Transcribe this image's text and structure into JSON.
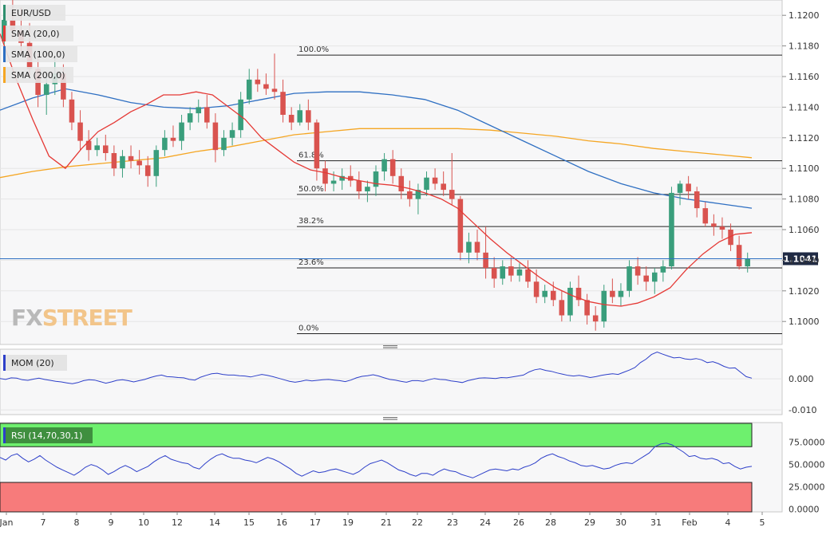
{
  "chart_data": {
    "type": "candlestick",
    "symbol": "EUR/USD",
    "brand": {
      "part1": "FX",
      "part2": "STREET",
      "color1": "#b9b9b9",
      "color2": "#f2c58a"
    },
    "x_labels": [
      "Jan",
      "7",
      "8",
      "9",
      "10",
      "12",
      "14",
      "15",
      "16",
      "17",
      "19",
      "21",
      "22",
      "23",
      "24",
      "26",
      "28",
      "29",
      "30",
      "31",
      "Feb",
      "4",
      "5"
    ],
    "price_axis": {
      "ticks": [
        "1.1200",
        "1.1180",
        "1.1160",
        "1.1140",
        "1.1120",
        "1.1100",
        "1.1080",
        "1.1060",
        "1.1040",
        "1.1020",
        "1.1000"
      ],
      "range": [
        1.0985,
        1.121
      ]
    },
    "last_price": "1.1041",
    "fibonacci": [
      {
        "label": "100.0%",
        "price": 1.1174
      },
      {
        "label": "61.8%",
        "price": 1.1105
      },
      {
        "label": "50.0%",
        "price": 1.1083
      },
      {
        "label": "38.2%",
        "price": 1.1062
      },
      {
        "label": "23.6%",
        "price": 1.1035
      },
      {
        "label": "0.0%",
        "price": 1.0992
      }
    ],
    "legend": [
      {
        "name": "EUR/USD",
        "color": "#2f8f6f"
      },
      {
        "name": "SMA (20,0)",
        "color": "#e53935"
      },
      {
        "name": "SMA (100,0)",
        "color": "#2e6fc2"
      },
      {
        "name": "SMA (200,0)",
        "color": "#f5a623"
      }
    ],
    "colors": {
      "up": "#3a9e7c",
      "down": "#d9534f",
      "sma20": "#e53935",
      "sma100": "#2e6fc2",
      "sma200": "#f5a623",
      "current_line": "#2e6fc2",
      "grid": "#e6e6e6"
    },
    "candles": [
      [
        1.1183,
        1.1202,
        1.117,
        1.1197
      ],
      [
        1.1197,
        1.121,
        1.1185,
        1.119
      ],
      [
        1.119,
        1.1205,
        1.1175,
        1.1182
      ],
      [
        1.1182,
        1.1195,
        1.116,
        1.1165
      ],
      [
        1.1165,
        1.1175,
        1.114,
        1.1148
      ],
      [
        1.1148,
        1.116,
        1.1135,
        1.1155
      ],
      [
        1.1155,
        1.1172,
        1.1148,
        1.1162
      ],
      [
        1.1162,
        1.1168,
        1.114,
        1.1145
      ],
      [
        1.1145,
        1.115,
        1.1125,
        1.113
      ],
      [
        1.113,
        1.1138,
        1.1112,
        1.1118
      ],
      [
        1.1118,
        1.1125,
        1.1105,
        1.1112
      ],
      [
        1.1112,
        1.112,
        1.1108,
        1.1115
      ],
      [
        1.1115,
        1.1122,
        1.1105,
        1.111
      ],
      [
        1.111,
        1.1115,
        1.1095,
        1.11
      ],
      [
        1.11,
        1.1112,
        1.1094,
        1.1108
      ],
      [
        1.1108,
        1.1115,
        1.11,
        1.1105
      ],
      [
        1.1105,
        1.1112,
        1.1096,
        1.1102
      ],
      [
        1.1102,
        1.1108,
        1.1088,
        1.1095
      ],
      [
        1.1095,
        1.1115,
        1.1088,
        1.1112
      ],
      [
        1.1112,
        1.1125,
        1.1108,
        1.112
      ],
      [
        1.112,
        1.1128,
        1.1114,
        1.1118
      ],
      [
        1.1118,
        1.1135,
        1.1112,
        1.113
      ],
      [
        1.113,
        1.114,
        1.1125,
        1.1136
      ],
      [
        1.1136,
        1.1145,
        1.113,
        1.114
      ],
      [
        1.114,
        1.1148,
        1.1126,
        1.113
      ],
      [
        1.113,
        1.1136,
        1.1104,
        1.1112
      ],
      [
        1.1112,
        1.1125,
        1.1108,
        1.112
      ],
      [
        1.112,
        1.113,
        1.1115,
        1.1125
      ],
      [
        1.1125,
        1.115,
        1.112,
        1.1145
      ],
      [
        1.1145,
        1.1165,
        1.1142,
        1.1158
      ],
      [
        1.1158,
        1.1165,
        1.115,
        1.1155
      ],
      [
        1.1155,
        1.1162,
        1.1148,
        1.1152
      ],
      [
        1.1152,
        1.1175,
        1.1145,
        1.115
      ],
      [
        1.115,
        1.1158,
        1.113,
        1.1135
      ],
      [
        1.1135,
        1.114,
        1.1125,
        1.113
      ],
      [
        1.113,
        1.1142,
        1.1128,
        1.1138
      ],
      [
        1.1138,
        1.1145,
        1.1125,
        1.113
      ],
      [
        1.113,
        1.1132,
        1.1092,
        1.11
      ],
      [
        1.11,
        1.1105,
        1.1085,
        1.109
      ],
      [
        1.109,
        1.1098,
        1.1085,
        1.1092
      ],
      [
        1.1092,
        1.11,
        1.1086,
        1.1095
      ],
      [
        1.1095,
        1.1102,
        1.1088,
        1.1092
      ],
      [
        1.1092,
        1.1098,
        1.108,
        1.1085
      ],
      [
        1.1085,
        1.1092,
        1.1078,
        1.1088
      ],
      [
        1.1088,
        1.1102,
        1.1082,
        1.1098
      ],
      [
        1.1098,
        1.111,
        1.1092,
        1.1106
      ],
      [
        1.1106,
        1.1112,
        1.109,
        1.1095
      ],
      [
        1.1095,
        1.11,
        1.108,
        1.1085
      ],
      [
        1.1085,
        1.1092,
        1.1075,
        1.108
      ],
      [
        1.108,
        1.109,
        1.107,
        1.1086
      ],
      [
        1.1086,
        1.1098,
        1.1082,
        1.1094
      ],
      [
        1.1094,
        1.11,
        1.1086,
        1.109
      ],
      [
        1.109,
        1.1098,
        1.1082,
        1.1086
      ],
      [
        1.1086,
        1.111,
        1.1076,
        1.108
      ],
      [
        1.108,
        1.1082,
        1.104,
        1.1045
      ],
      [
        1.1045,
        1.1058,
        1.1038,
        1.1052
      ],
      [
        1.1052,
        1.106,
        1.104,
        1.1045
      ],
      [
        1.1045,
        1.1062,
        1.1028,
        1.1035
      ],
      [
        1.1035,
        1.1042,
        1.1022,
        1.1028
      ],
      [
        1.1028,
        1.104,
        1.1024,
        1.1036
      ],
      [
        1.1036,
        1.1042,
        1.1026,
        1.103
      ],
      [
        1.103,
        1.1038,
        1.1026,
        1.1034
      ],
      [
        1.1034,
        1.104,
        1.1022,
        1.1026
      ],
      [
        1.1026,
        1.1034,
        1.1012,
        1.1016
      ],
      [
        1.1016,
        1.1024,
        1.1012,
        1.102
      ],
      [
        1.102,
        1.1026,
        1.101,
        1.1014
      ],
      [
        1.1014,
        1.102,
        1.1,
        1.1004
      ],
      [
        1.1004,
        1.1026,
        1.1,
        1.1022
      ],
      [
        1.1022,
        1.103,
        1.101,
        1.1014
      ],
      [
        1.1014,
        1.1018,
        1.0998,
        1.1004
      ],
      [
        1.1004,
        1.101,
        1.0994,
        1.1
      ],
      [
        1.1,
        1.1024,
        1.0996,
        1.102
      ],
      [
        1.102,
        1.1028,
        1.1012,
        1.1016
      ],
      [
        1.1016,
        1.1025,
        1.101,
        1.102
      ],
      [
        1.102,
        1.104,
        1.1016,
        1.1036
      ],
      [
        1.1036,
        1.1042,
        1.1024,
        1.103
      ],
      [
        1.103,
        1.1036,
        1.102,
        1.1026
      ],
      [
        1.1026,
        1.1035,
        1.1018,
        1.1032
      ],
      [
        1.1032,
        1.104,
        1.1026,
        1.1036
      ],
      [
        1.1036,
        1.1088,
        1.1034,
        1.1084
      ],
      [
        1.1084,
        1.1092,
        1.1076,
        1.109
      ],
      [
        1.109,
        1.1095,
        1.108,
        1.1085
      ],
      [
        1.1085,
        1.1088,
        1.1068,
        1.1074
      ],
      [
        1.1074,
        1.1078,
        1.1062,
        1.1064
      ],
      [
        1.1064,
        1.107,
        1.1056,
        1.1062
      ],
      [
        1.1062,
        1.1068,
        1.1054,
        1.106
      ],
      [
        1.106,
        1.1064,
        1.1046,
        1.105
      ],
      [
        1.105,
        1.1056,
        1.1034,
        1.1036
      ],
      [
        1.1036,
        1.1045,
        1.1032,
        1.1041
      ]
    ],
    "sma20": [
      [
        0,
        1.1188
      ],
      [
        15,
        1.1158
      ],
      [
        30,
        1.1132
      ],
      [
        45,
        1.1108
      ],
      [
        60,
        1.11
      ],
      [
        75,
        1.1113
      ],
      [
        90,
        1.1124
      ],
      [
        105,
        1.113
      ],
      [
        120,
        1.1137
      ],
      [
        135,
        1.1142
      ],
      [
        150,
        1.1148
      ],
      [
        165,
        1.1148
      ],
      [
        180,
        1.115
      ],
      [
        195,
        1.1148
      ],
      [
        210,
        1.114
      ],
      [
        225,
        1.1132
      ],
      [
        240,
        1.112
      ],
      [
        255,
        1.1112
      ],
      [
        270,
        1.1104
      ],
      [
        285,
        1.1099
      ],
      [
        300,
        1.1097
      ],
      [
        315,
        1.1094
      ],
      [
        330,
        1.1092
      ],
      [
        345,
        1.109
      ],
      [
        360,
        1.1089
      ],
      [
        375,
        1.1087
      ],
      [
        390,
        1.1084
      ],
      [
        405,
        1.108
      ],
      [
        420,
        1.1074
      ],
      [
        435,
        1.1064
      ],
      [
        450,
        1.1054
      ],
      [
        465,
        1.1045
      ],
      [
        480,
        1.1037
      ],
      [
        495,
        1.1029
      ],
      [
        510,
        1.1022
      ],
      [
        525,
        1.1017
      ],
      [
        540,
        1.1013
      ],
      [
        555,
        1.1011
      ],
      [
        570,
        1.101
      ],
      [
        585,
        1.1012
      ],
      [
        600,
        1.1016
      ],
      [
        615,
        1.1022
      ],
      [
        630,
        1.1034
      ],
      [
        645,
        1.1044
      ],
      [
        660,
        1.1052
      ],
      [
        675,
        1.1057
      ],
      [
        690,
        1.1058
      ]
    ],
    "sma100": [
      [
        0,
        1.1138
      ],
      [
        30,
        1.1146
      ],
      [
        60,
        1.1152
      ],
      [
        90,
        1.1148
      ],
      [
        120,
        1.1143
      ],
      [
        150,
        1.114
      ],
      [
        180,
        1.1139
      ],
      [
        210,
        1.1141
      ],
      [
        240,
        1.1145
      ],
      [
        270,
        1.1149
      ],
      [
        300,
        1.115
      ],
      [
        330,
        1.115
      ],
      [
        360,
        1.1148
      ],
      [
        390,
        1.1145
      ],
      [
        420,
        1.1138
      ],
      [
        450,
        1.1128
      ],
      [
        480,
        1.1118
      ],
      [
        510,
        1.1108
      ],
      [
        540,
        1.1098
      ],
      [
        570,
        1.109
      ],
      [
        600,
        1.1084
      ],
      [
        630,
        1.108
      ],
      [
        660,
        1.1077
      ],
      [
        690,
        1.1074
      ]
    ],
    "sma200": [
      [
        0,
        1.1094
      ],
      [
        30,
        1.1098
      ],
      [
        60,
        1.1101
      ],
      [
        90,
        1.1103
      ],
      [
        120,
        1.1105
      ],
      [
        150,
        1.1107
      ],
      [
        180,
        1.1111
      ],
      [
        210,
        1.1114
      ],
      [
        240,
        1.1118
      ],
      [
        270,
        1.1122
      ],
      [
        300,
        1.1124
      ],
      [
        330,
        1.1126
      ],
      [
        360,
        1.1126
      ],
      [
        390,
        1.1126
      ],
      [
        420,
        1.1126
      ],
      [
        450,
        1.1125
      ],
      [
        480,
        1.1123
      ],
      [
        510,
        1.1121
      ],
      [
        540,
        1.1118
      ],
      [
        570,
        1.1116
      ],
      [
        600,
        1.1113
      ],
      [
        630,
        1.1111
      ],
      [
        660,
        1.1109
      ],
      [
        690,
        1.1107
      ]
    ],
    "mom": {
      "label": "MOM (20)",
      "ticks": [
        "0.000",
        "-0.010"
      ],
      "range": [
        -0.0115,
        0.0095
      ],
      "values": [
        0.0001,
        -0.0002,
        0.0003,
        0.0002,
        -0.0003,
        -0.0005,
        -0.0001,
        0.0002,
        -0.0002,
        -0.0005,
        -0.0008,
        -0.001,
        -0.0013,
        -0.0016,
        -0.0012,
        -0.0006,
        -0.0003,
        -0.0004,
        -0.0009,
        -0.0014,
        -0.001,
        -0.0005,
        -0.0003,
        -0.0006,
        -0.001,
        -0.0006,
        -0.0002,
        0.0004,
        0.0009,
        0.0012,
        0.0007,
        0.0006,
        0.0004,
        0.0003,
        -0.0002,
        -0.0004,
        0.0005,
        0.0011,
        0.0016,
        0.0018,
        0.0014,
        0.0012,
        0.0012,
        0.001,
        0.0009,
        0.0006,
        0.001,
        0.0014,
        0.0011,
        0.0007,
        0.0002,
        -0.0003,
        -0.0008,
        -0.0011,
        -0.0008,
        -0.0004,
        -0.0007,
        -0.0005,
        -0.0003,
        -0.0002,
        -0.0004,
        -0.0006,
        -0.0009,
        -0.0004,
        0.0003,
        0.0008,
        0.001,
        0.0013,
        0.0009,
        0.0003,
        -0.0002,
        -0.0004,
        -0.0008,
        -0.0011,
        -0.0006,
        -0.0006,
        -0.0008,
        -0.0003,
        0.0001,
        -0.0002,
        -0.0003,
        -0.0007,
        -0.0009,
        -0.0012,
        -0.0006,
        -0.0002,
        0.0002,
        0.0003,
        0.0002,
        0.0001,
        0.0004,
        0.0003,
        0.0006,
        0.0009,
        0.0012,
        0.0022,
        0.0029,
        0.0032,
        0.0027,
        0.0024,
        0.0019,
        0.0015,
        0.0011,
        0.0009,
        0.0011,
        0.0008,
        0.0004,
        0.0007,
        0.0011,
        0.0014,
        0.0016,
        0.0014,
        0.0021,
        0.0028,
        0.0036,
        0.0052,
        0.0063,
        0.0078,
        0.0086,
        0.0079,
        0.0073,
        0.0067,
        0.0069,
        0.0064,
        0.0062,
        0.0065,
        0.0061,
        0.0052,
        0.0055,
        0.0049,
        0.004,
        0.0034,
        0.0035,
        0.0021,
        0.0007,
        0.0002
      ]
    },
    "rsi": {
      "label": "RSI (14,70,30,1)",
      "ticks": [
        "75.0000",
        "50.0000",
        "25.0000",
        "0.0000"
      ],
      "range": [
        -3,
        97
      ],
      "overbought": 70,
      "oversold": 30,
      "values": [
        58,
        55,
        60,
        62,
        57,
        53,
        56,
        60,
        55,
        51,
        47,
        44,
        41,
        38,
        42,
        47,
        50,
        48,
        44,
        39,
        42,
        46,
        49,
        46,
        42,
        45,
        48,
        53,
        57,
        60,
        56,
        54,
        52,
        51,
        47,
        45,
        51,
        56,
        60,
        62,
        59,
        57,
        57,
        55,
        54,
        52,
        55,
        58,
        56,
        53,
        49,
        45,
        40,
        37,
        40,
        43,
        41,
        42,
        44,
        45,
        43,
        41,
        39,
        42,
        47,
        51,
        53,
        55,
        52,
        48,
        44,
        42,
        39,
        37,
        40,
        40,
        38,
        42,
        45,
        43,
        42,
        39,
        37,
        35,
        38,
        41,
        44,
        45,
        44,
        43,
        45,
        44,
        47,
        49,
        52,
        57,
        60,
        62,
        59,
        57,
        54,
        52,
        49,
        48,
        49,
        47,
        45,
        46,
        49,
        51,
        52,
        51,
        55,
        59,
        63,
        70,
        73,
        74,
        72,
        68,
        64,
        59,
        60,
        57,
        56,
        57,
        55,
        51,
        52,
        48,
        45,
        47,
        48
      ]
    }
  }
}
